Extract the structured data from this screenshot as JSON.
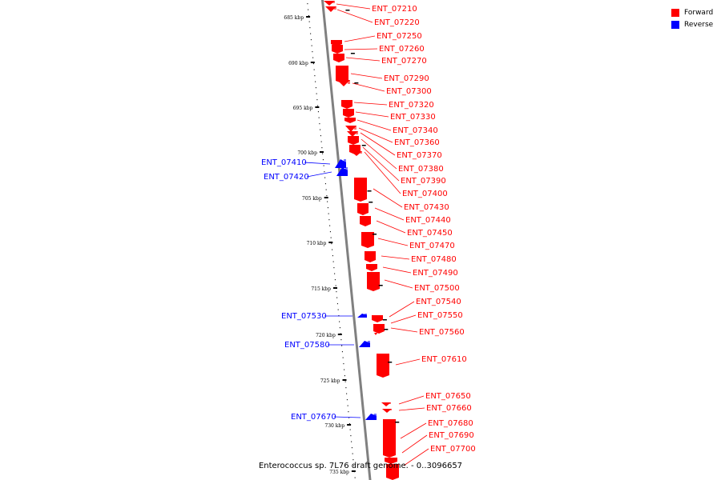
{
  "colors": {
    "forward": "#ff0000",
    "reverse": "#0000ff",
    "backbone": "#808080"
  },
  "legend": [
    {
      "label": "Forward",
      "color": "#ff0000",
      "strand": "forward"
    },
    {
      "label": "Reverse",
      "color": "#0000ff",
      "strand": "reverse"
    }
  ],
  "caption": "Enterococcus sp. 7L76 draft genome. - 0..3096657",
  "ruler": [
    {
      "label": "685 kbp"
    },
    {
      "label": "690 kbp"
    },
    {
      "label": "695 kbp"
    },
    {
      "label": "700 kbp"
    },
    {
      "label": "705 kbp"
    },
    {
      "label": "710 kbp"
    },
    {
      "label": "715 kbp"
    },
    {
      "label": "720 kbp"
    },
    {
      "label": "725 kbp"
    },
    {
      "label": "730 kbp"
    },
    {
      "label": "735 kbp"
    }
  ],
  "genes": [
    {
      "id": "ENT_07210",
      "strand": "forward"
    },
    {
      "id": "ENT_07220",
      "strand": "forward"
    },
    {
      "id": "ENT_07250",
      "strand": "forward"
    },
    {
      "id": "ENT_07260",
      "strand": "forward"
    },
    {
      "id": "ENT_07270",
      "strand": "forward"
    },
    {
      "id": "ENT_07290",
      "strand": "forward"
    },
    {
      "id": "ENT_07300",
      "strand": "forward"
    },
    {
      "id": "ENT_07320",
      "strand": "forward"
    },
    {
      "id": "ENT_07330",
      "strand": "forward"
    },
    {
      "id": "ENT_07340",
      "strand": "forward"
    },
    {
      "id": "ENT_07360",
      "strand": "forward"
    },
    {
      "id": "ENT_07370",
      "strand": "forward"
    },
    {
      "id": "ENT_07380",
      "strand": "forward"
    },
    {
      "id": "ENT_07390",
      "strand": "forward"
    },
    {
      "id": "ENT_07400",
      "strand": "forward"
    },
    {
      "id": "ENT_07410",
      "strand": "reverse"
    },
    {
      "id": "ENT_07420",
      "strand": "reverse"
    },
    {
      "id": "ENT_07430",
      "strand": "forward"
    },
    {
      "id": "ENT_07440",
      "strand": "forward"
    },
    {
      "id": "ENT_07450",
      "strand": "forward"
    },
    {
      "id": "ENT_07470",
      "strand": "forward"
    },
    {
      "id": "ENT_07480",
      "strand": "forward"
    },
    {
      "id": "ENT_07490",
      "strand": "forward"
    },
    {
      "id": "ENT_07500",
      "strand": "forward"
    },
    {
      "id": "ENT_07530",
      "strand": "reverse"
    },
    {
      "id": "ENT_07540",
      "strand": "forward"
    },
    {
      "id": "ENT_07550",
      "strand": "forward"
    },
    {
      "id": "ENT_07560",
      "strand": "forward"
    },
    {
      "id": "ENT_07580",
      "strand": "reverse"
    },
    {
      "id": "ENT_07610",
      "strand": "forward"
    },
    {
      "id": "ENT_07650",
      "strand": "forward"
    },
    {
      "id": "ENT_07660",
      "strand": "forward"
    },
    {
      "id": "ENT_07670",
      "strand": "reverse"
    },
    {
      "id": "ENT_07680",
      "strand": "forward"
    },
    {
      "id": "ENT_07690",
      "strand": "forward"
    },
    {
      "id": "ENT_07700",
      "strand": "forward"
    }
  ]
}
